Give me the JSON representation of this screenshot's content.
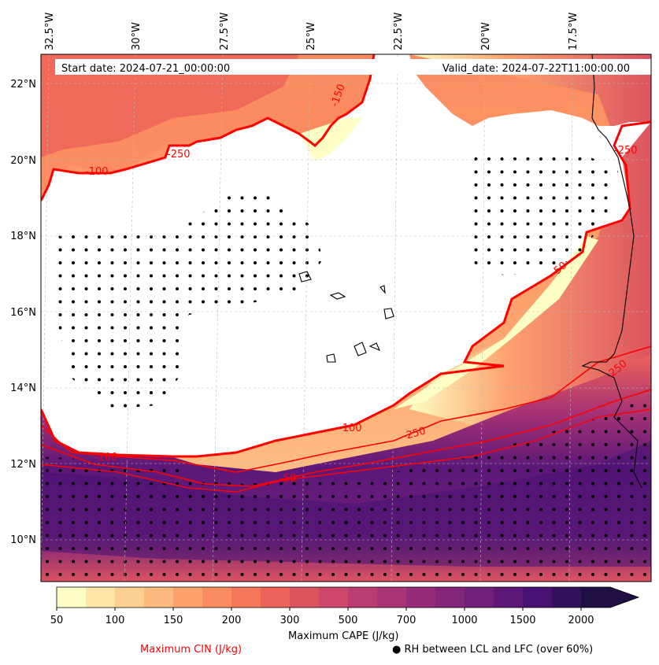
{
  "chart_data": {
    "type": "contourf_map",
    "title_left": "Start date: 2024-07-21_00:00:00",
    "title_right": "Valid_date: 2024-07-22T11:00:00.00",
    "lon_ticks": [
      "32.5°W",
      "30°W",
      "27.5°W",
      "25°W",
      "22.5°W",
      "20°W",
      "17.5°W"
    ],
    "lat_ticks": [
      "22°N",
      "20°N",
      "18°N",
      "16°N",
      "14°N",
      "12°N",
      "10°N"
    ],
    "colorbar": {
      "label": "Maximum CAPE (J/kg)",
      "levels": [
        50,
        75,
        100,
        125,
        150,
        175,
        200,
        250,
        300,
        400,
        500,
        600,
        700,
        800,
        1000,
        1250,
        1500,
        1750,
        2000
      ],
      "tick_labels": [
        "50",
        "100",
        "150",
        "200",
        "300",
        "500",
        "700",
        "1000",
        "1500",
        "2000"
      ],
      "colors": [
        "#fdffc4",
        "#fee6a6",
        "#fecf92",
        "#feb97f",
        "#fda36e",
        "#fb8c5f",
        "#f57759",
        "#ec6258",
        "#dc5360",
        "#cc4769",
        "#bb3c70",
        "#a93375",
        "#962b79",
        "#83257b",
        "#701f7a",
        "#5c1779",
        "#471274",
        "#32105c",
        "#1f0f43"
      ]
    },
    "contour_label_samples": [
      "-100",
      "-250",
      "-150",
      "-50",
      "-250",
      "-100",
      "-250",
      "-50",
      "-250",
      "-150",
      "-250"
    ],
    "legend": {
      "cin": "Maximum CIN (J/kg)",
      "rh": "● RH between LCL and LFC (over 60%)"
    },
    "colors": {
      "cin_contour": "#ff0000",
      "coast": "#000000",
      "stipple": "#000000"
    }
  }
}
